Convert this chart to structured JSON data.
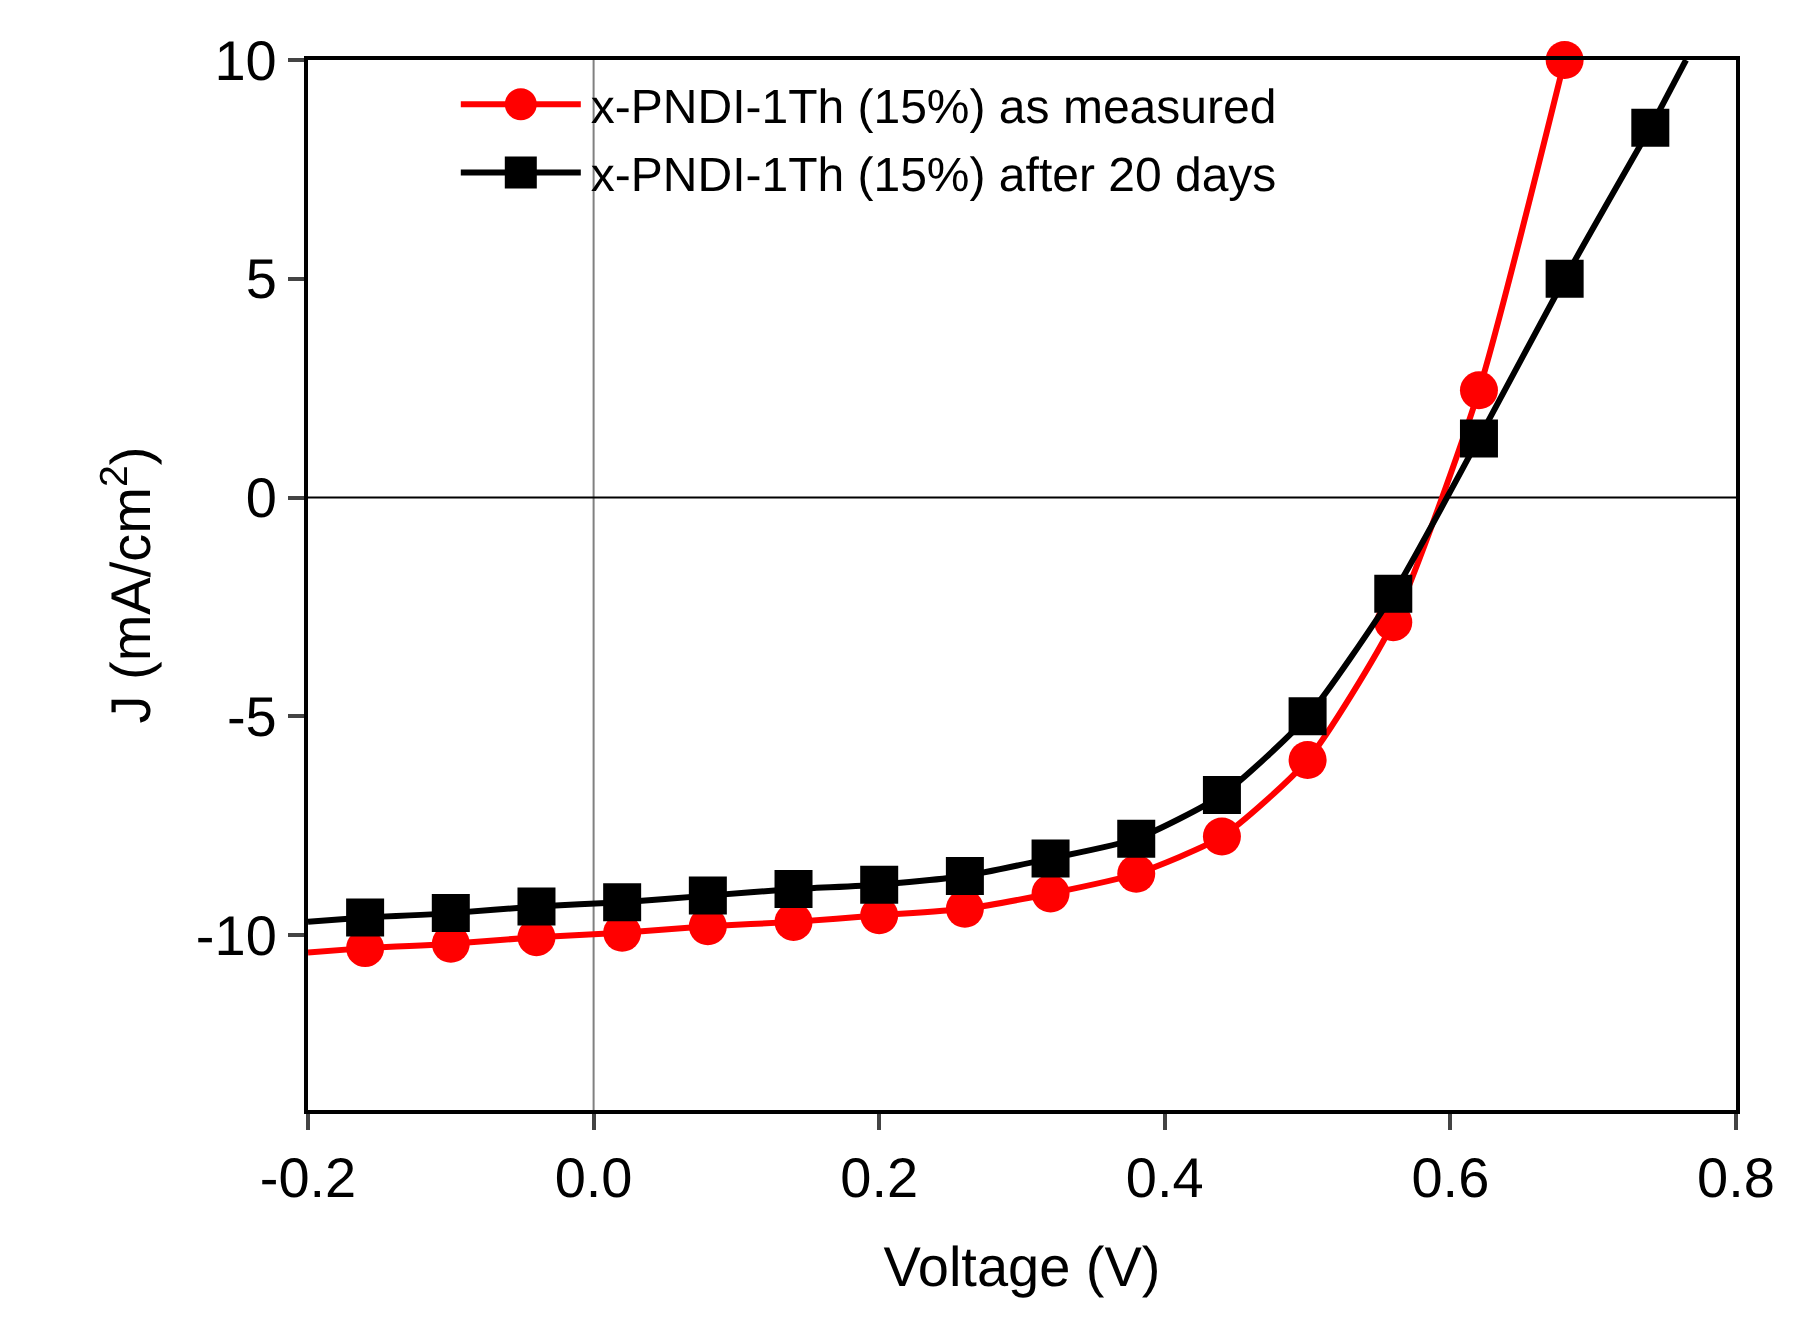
{
  "chart_data": {
    "type": "line",
    "xlabel": "Voltage (V)",
    "ylabel": "J (mA/cm$^{2}$)",
    "xlim": [
      -0.2,
      0.8
    ],
    "ylim": [
      -14,
      10
    ],
    "xticks": [
      {
        "value": -0.2,
        "label": "-0.2"
      },
      {
        "value": 0,
        "label": "0.0"
      },
      {
        "value": 0.2,
        "label": "0.2"
      },
      {
        "value": 0.4,
        "label": "0.4"
      },
      {
        "value": 0.6,
        "label": "0.6"
      },
      {
        "value": 0.8,
        "label": "0.8"
      }
    ],
    "yticks": [
      -10,
      -5,
      0,
      5,
      10
    ],
    "grid": false,
    "legend": "top left",
    "line_style": "solid",
    "ref_lines": [
      {
        "axis": "x",
        "value": 0,
        "color": "#808080"
      },
      {
        "axis": "y",
        "value": 0,
        "color": "#000000"
      }
    ],
    "series": [
      {
        "name": "x-PNDI-1Th (15%) as measured",
        "color": "#ff0000",
        "marker": "circle",
        "x": [
          -0.16,
          -0.1,
          -0.04,
          0.02,
          0.08,
          0.14,
          0.2,
          0.26,
          0.32,
          0.38,
          0.44,
          0.5,
          0.56,
          0.62,
          0.68
        ],
        "values": [
          -10.3,
          -10.2,
          -10.05,
          -9.95,
          -9.8,
          -9.7,
          -9.55,
          -9.4,
          -9.05,
          -8.6,
          -7.75,
          -6.0,
          -2.85,
          2.45,
          10.0
        ]
      },
      {
        "name": "x-PNDI-1Th (15%) after 20 days",
        "color": "#000000",
        "marker": "square",
        "x": [
          -0.16,
          -0.1,
          -0.04,
          0.02,
          0.08,
          0.14,
          0.2,
          0.26,
          0.32,
          0.38,
          0.44,
          0.5,
          0.56,
          0.62,
          0.68,
          0.74
        ],
        "values": [
          -9.6,
          -9.5,
          -9.35,
          -9.25,
          -9.1,
          -8.95,
          -8.85,
          -8.65,
          -8.25,
          -7.8,
          -6.8,
          -5.0,
          -2.2,
          1.35,
          5.0,
          8.45
        ]
      },
      {
        "color": "#ff0000",
        "marker": "none",
        "x": [
          -0.2,
          -0.16
        ],
        "values": [
          -10.4,
          -10.3
        ]
      },
      {
        "color": "#000000",
        "marker": "none",
        "x": [
          -0.2,
          -0.16
        ],
        "values": [
          -9.7,
          -9.6
        ]
      },
      {
        "color": "#000000",
        "marker": "none",
        "x": [
          0.74,
          0.765
        ],
        "values": [
          8.45,
          10.0
        ]
      }
    ]
  }
}
